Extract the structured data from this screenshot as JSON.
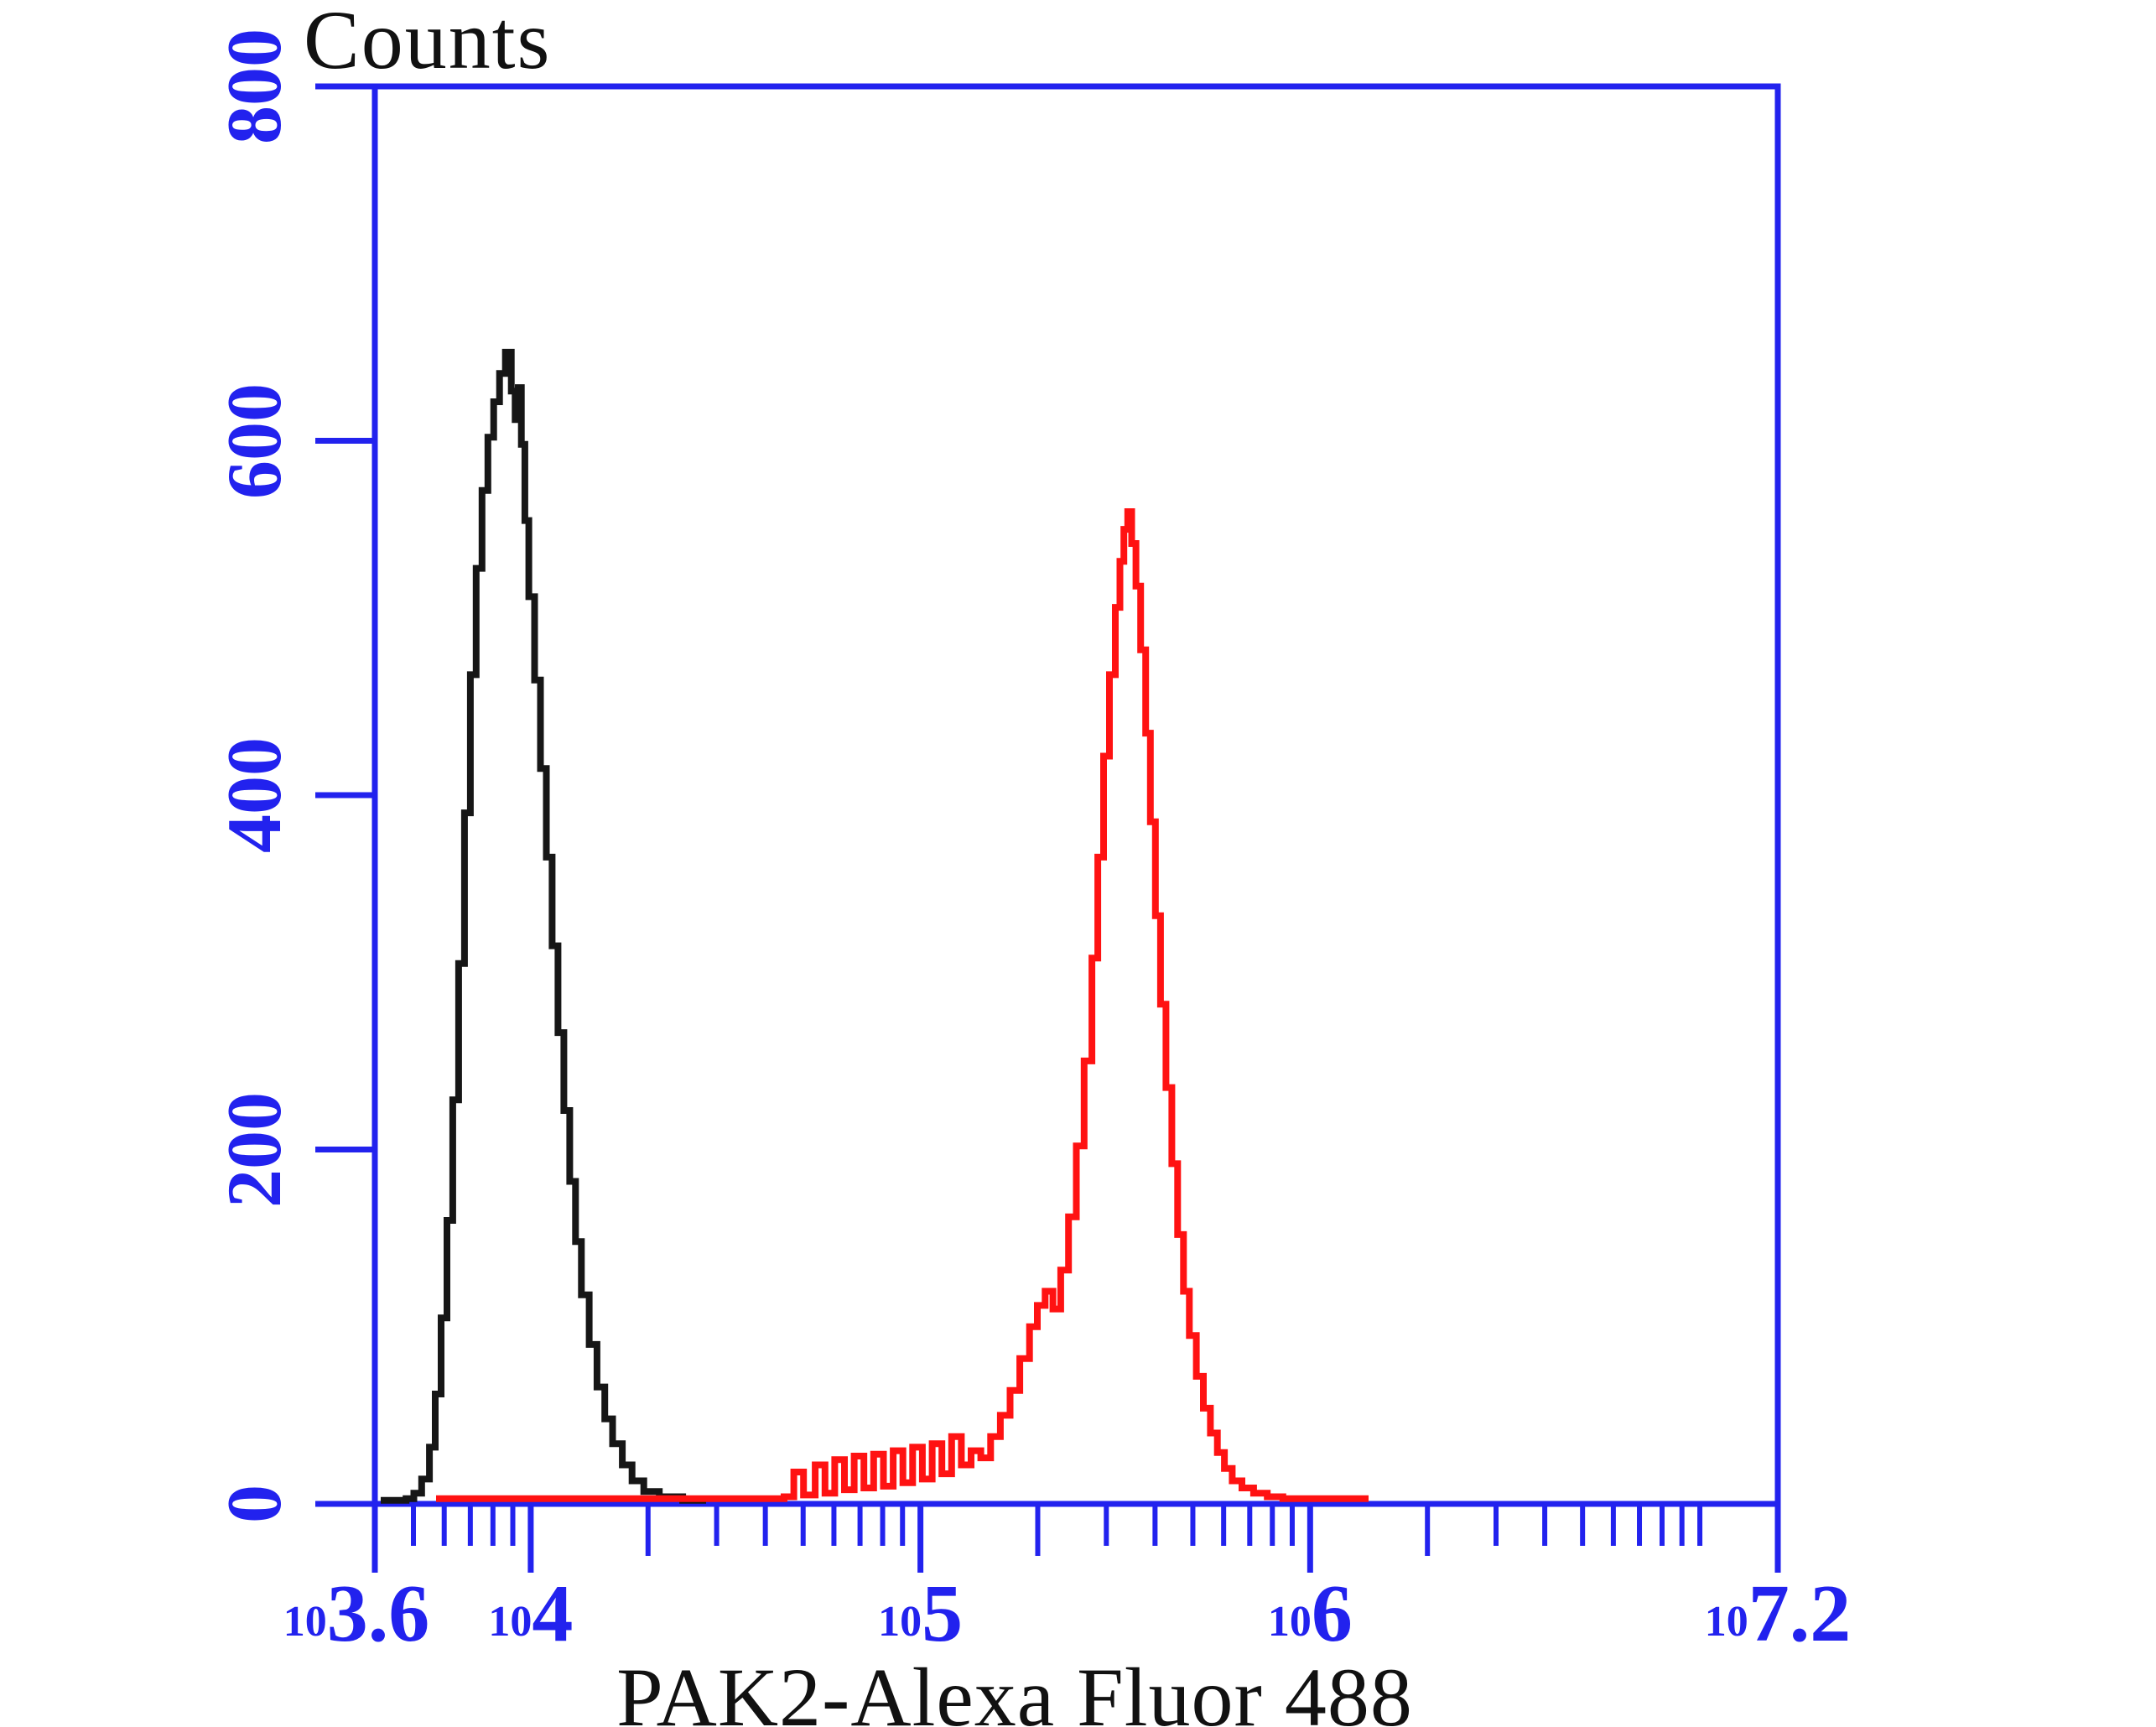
{
  "figure": {
    "background": "#ffffff",
    "axis_color": "#2222ee",
    "text_color": "#111111"
  },
  "y_axis": {
    "title": "Counts",
    "min": 0,
    "max": 800,
    "tick_values": [
      800,
      600,
      400,
      200,
      0
    ]
  },
  "x_axis": {
    "title": "PAK2-Alexa Fluor 488",
    "scale": "log10",
    "log_min": 3.6,
    "log_max": 7.2,
    "major_ticks": [
      {
        "log10": 3.6,
        "base": "10",
        "exponent": "3.6"
      },
      {
        "log10": 4.0,
        "base": "10",
        "exponent": "4"
      },
      {
        "log10": 5.0,
        "base": "10",
        "exponent": "5"
      },
      {
        "log10": 6.0,
        "base": "10",
        "exponent": "6"
      },
      {
        "log10": 7.2,
        "base": "10",
        "exponent": "7.2"
      }
    ],
    "minor_ticks_log10": [
      3.699,
      3.778,
      3.845,
      3.903,
      3.954,
      4.301,
      4.477,
      4.602,
      4.699,
      4.778,
      4.845,
      4.903,
      4.954,
      5.301,
      5.477,
      5.602,
      5.699,
      5.778,
      5.845,
      5.903,
      5.954,
      6.301,
      6.477,
      6.602,
      6.699,
      6.778,
      6.845,
      6.903,
      6.954,
      7.0
    ]
  },
  "chart_data": {
    "type": "line",
    "subtype": "flow-cytometry-histogram-overlay",
    "title": "Counts",
    "xlabel": "PAK2-Alexa Fluor 488",
    "ylabel": "Counts",
    "x_scale": "log10",
    "xlim_log10": [
      3.6,
      7.2
    ],
    "ylim": [
      0,
      800
    ],
    "grid": false,
    "legend": false,
    "series": [
      {
        "name": "black-control-peak",
        "color": "#161616",
        "peak": {
          "x_log10": 3.94,
          "counts": 650
        },
        "points": [
          [
            3.615,
            2
          ],
          [
            3.68,
            3
          ],
          [
            3.7,
            6
          ],
          [
            3.72,
            14
          ],
          [
            3.74,
            32
          ],
          [
            3.755,
            62
          ],
          [
            3.77,
            105
          ],
          [
            3.785,
            160
          ],
          [
            3.8,
            228
          ],
          [
            3.815,
            305
          ],
          [
            3.83,
            390
          ],
          [
            3.845,
            468
          ],
          [
            3.86,
            528
          ],
          [
            3.875,
            572
          ],
          [
            3.89,
            602
          ],
          [
            3.905,
            622
          ],
          [
            3.92,
            638
          ],
          [
            3.935,
            650
          ],
          [
            3.95,
            628
          ],
          [
            3.96,
            612
          ],
          [
            3.968,
            630
          ],
          [
            3.976,
            598
          ],
          [
            3.985,
            555
          ],
          [
            3.995,
            512
          ],
          [
            4.01,
            465
          ],
          [
            4.025,
            415
          ],
          [
            4.04,
            365
          ],
          [
            4.055,
            315
          ],
          [
            4.07,
            266
          ],
          [
            4.085,
            222
          ],
          [
            4.1,
            182
          ],
          [
            4.115,
            148
          ],
          [
            4.13,
            118
          ],
          [
            4.15,
            90
          ],
          [
            4.17,
            66
          ],
          [
            4.19,
            48
          ],
          [
            4.21,
            34
          ],
          [
            4.235,
            22
          ],
          [
            4.26,
            13
          ],
          [
            4.29,
            7
          ],
          [
            4.33,
            4
          ],
          [
            4.39,
            2
          ],
          [
            4.45,
            2
          ]
        ]
      },
      {
        "name": "red-stained-peak",
        "color": "#ff1212",
        "peak": {
          "x_log10": 5.53,
          "counts": 560
        },
        "points": [
          [
            3.757,
            3
          ],
          [
            3.9,
            3
          ],
          [
            4.05,
            3
          ],
          [
            4.2,
            3
          ],
          [
            4.35,
            3
          ],
          [
            4.5,
            3
          ],
          [
            4.6,
            3
          ],
          [
            4.65,
            4
          ],
          [
            4.675,
            18
          ],
          [
            4.7,
            5
          ],
          [
            4.73,
            22
          ],
          [
            4.755,
            6
          ],
          [
            4.78,
            25
          ],
          [
            4.805,
            8
          ],
          [
            4.83,
            27
          ],
          [
            4.855,
            9
          ],
          [
            4.88,
            28
          ],
          [
            4.905,
            10
          ],
          [
            4.93,
            30
          ],
          [
            4.955,
            12
          ],
          [
            4.98,
            32
          ],
          [
            5.005,
            14
          ],
          [
            5.03,
            34
          ],
          [
            5.055,
            17
          ],
          [
            5.08,
            38
          ],
          [
            5.105,
            22
          ],
          [
            5.13,
            30
          ],
          [
            5.155,
            26
          ],
          [
            5.18,
            38
          ],
          [
            5.205,
            50
          ],
          [
            5.23,
            64
          ],
          [
            5.255,
            82
          ],
          [
            5.28,
            100
          ],
          [
            5.3,
            112
          ],
          [
            5.32,
            120
          ],
          [
            5.34,
            110
          ],
          [
            5.36,
            132
          ],
          [
            5.38,
            162
          ],
          [
            5.4,
            202
          ],
          [
            5.42,
            250
          ],
          [
            5.44,
            308
          ],
          [
            5.455,
            365
          ],
          [
            5.47,
            422
          ],
          [
            5.485,
            468
          ],
          [
            5.5,
            506
          ],
          [
            5.512,
            532
          ],
          [
            5.522,
            550
          ],
          [
            5.532,
            560
          ],
          [
            5.542,
            542
          ],
          [
            5.553,
            518
          ],
          [
            5.565,
            482
          ],
          [
            5.578,
            435
          ],
          [
            5.59,
            385
          ],
          [
            5.603,
            332
          ],
          [
            5.616,
            282
          ],
          [
            5.63,
            235
          ],
          [
            5.645,
            192
          ],
          [
            5.66,
            152
          ],
          [
            5.675,
            120
          ],
          [
            5.69,
            95
          ],
          [
            5.708,
            72
          ],
          [
            5.726,
            54
          ],
          [
            5.744,
            40
          ],
          [
            5.762,
            29
          ],
          [
            5.78,
            20
          ],
          [
            5.8,
            13
          ],
          [
            5.825,
            9
          ],
          [
            5.855,
            6
          ],
          [
            5.89,
            4
          ],
          [
            5.93,
            3
          ],
          [
            5.99,
            3
          ],
          [
            6.06,
            3
          ],
          [
            6.15,
            3
          ]
        ]
      }
    ]
  }
}
